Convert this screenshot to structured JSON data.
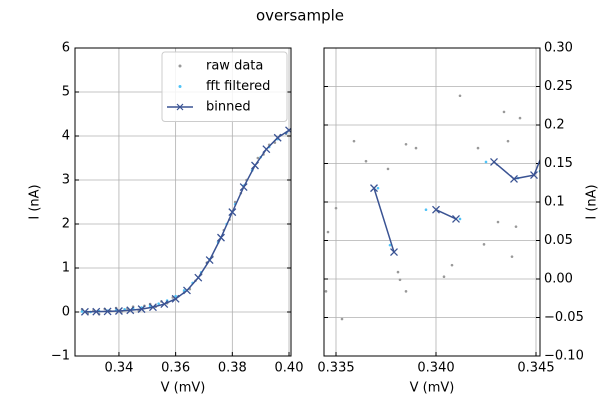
{
  "title": "oversample",
  "chart_data": [
    {
      "type": "line",
      "xlabel": "V (mV)",
      "ylabel": "I (nA)",
      "xlim": [
        0.3245,
        0.4007
      ],
      "ylim": [
        -1,
        6
      ],
      "xticks": [
        0.34,
        0.36,
        0.38,
        {
          "value": 0.4,
          "label": "0.40"
        }
      ],
      "yticks": [
        {
          "value": -1,
          "label": "−1"
        },
        0,
        1,
        2,
        3,
        4,
        5,
        6
      ],
      "grid": true,
      "legend": "upper right",
      "y_axis_side": "left",
      "series": [
        {
          "name": "raw data",
          "color": "#999999",
          "style": "dots",
          "x": [
            0.327,
            0.329,
            0.331,
            0.333,
            0.335,
            0.337,
            0.339,
            0.341,
            0.343,
            0.345,
            0.347,
            0.349,
            0.351,
            0.353,
            0.355,
            0.357,
            0.359,
            0.361,
            0.363,
            0.365,
            0.367,
            0.369,
            0.371,
            0.373,
            0.375,
            0.377,
            0.379,
            0.381,
            0.383,
            0.385,
            0.387,
            0.389,
            0.391,
            0.393,
            0.395,
            0.397,
            0.399
          ],
          "values": [
            0.06,
            -0.03,
            0.04,
            -0.05,
            0.07,
            0.02,
            0.09,
            0.01,
            0.08,
            0.12,
            0.03,
            0.14,
            0.18,
            0.12,
            0.24,
            0.2,
            0.33,
            0.36,
            0.47,
            0.52,
            0.71,
            0.86,
            1.12,
            1.26,
            1.6,
            1.86,
            2.1,
            2.5,
            2.7,
            3.0,
            3.22,
            3.5,
            3.58,
            3.8,
            3.85,
            4.02,
            4.05
          ]
        },
        {
          "name": "fft filtered",
          "color": "#4fc3f7",
          "style": "dots",
          "x": [
            0.327,
            0.33,
            0.333,
            0.336,
            0.339,
            0.342,
            0.345,
            0.348,
            0.351,
            0.354,
            0.357,
            0.36,
            0.363,
            0.366,
            0.369,
            0.372,
            0.375,
            0.378,
            0.381,
            0.384,
            0.387,
            0.39,
            0.393,
            0.396,
            0.399
          ],
          "values": [
            0.01,
            0.0,
            0.02,
            0.03,
            0.04,
            0.06,
            0.08,
            0.1,
            0.14,
            0.19,
            0.26,
            0.36,
            0.49,
            0.66,
            0.9,
            1.2,
            1.58,
            2.0,
            2.45,
            2.87,
            3.22,
            3.52,
            3.75,
            3.93,
            4.07
          ]
        },
        {
          "name": "binned",
          "color": "#3a5393",
          "style": "line-x",
          "x": [
            0.328,
            0.332,
            0.336,
            0.34,
            0.344,
            0.348,
            0.352,
            0.356,
            0.36,
            0.364,
            0.368,
            0.372,
            0.376,
            0.38,
            0.384,
            0.388,
            0.392,
            0.396,
            0.4
          ],
          "values": [
            0.005,
            0.008,
            0.013,
            0.023,
            0.04,
            0.065,
            0.11,
            0.18,
            0.3,
            0.49,
            0.78,
            1.18,
            1.69,
            2.27,
            2.84,
            3.33,
            3.7,
            3.96,
            4.13
          ]
        }
      ]
    },
    {
      "type": "line",
      "xlabel": "V (mV)",
      "ylabel": "I (nA)",
      "xlim": [
        0.3344,
        0.3452
      ],
      "ylim": [
        -0.1,
        0.3
      ],
      "xticks": [
        0.335,
        {
          "value": 0.34,
          "label": "0.340"
        },
        0.345
      ],
      "yticks": [
        {
          "value": -0.1,
          "label": "−0.10"
        },
        {
          "value": -0.05,
          "label": "−0.05"
        },
        {
          "value": 0,
          "label": "0.00"
        },
        0.05,
        0.1,
        0.15,
        0.2,
        0.25,
        {
          "value": 0.3,
          "label": "0.30"
        }
      ],
      "grid": true,
      "y_axis_side": "right",
      "series": [
        {
          "color": "#999999",
          "style": "dots",
          "x": [
            0.3345,
            0.3346,
            0.335,
            0.3353,
            0.3359,
            0.3365,
            0.3376,
            0.3381,
            0.3382,
            0.3385,
            0.3385,
            0.339,
            0.3404,
            0.3408,
            0.3412,
            0.3421,
            0.3424,
            0.3431,
            0.3434,
            0.3436,
            0.3438,
            0.344,
            0.3442
          ],
          "values": [
            -0.016,
            0.061,
            0.092,
            -0.052,
            0.179,
            0.153,
            0.143,
            0.009,
            -0.001,
            -0.016,
            0.175,
            0.17,
            0.003,
            0.018,
            0.238,
            0.17,
            0.045,
            0.074,
            0.217,
            0.179,
            0.029,
            0.068,
            0.209
          ]
        },
        {
          "color": "#4fc3f7",
          "style": "dots",
          "x": [
            0.3371,
            0.3377,
            0.3395,
            0.3412,
            0.3425,
            0.3441,
            0.3452
          ],
          "values": [
            0.118,
            0.044,
            0.09,
            0.078,
            0.152,
            0.131,
            0.14
          ]
        },
        {
          "color": "#3a5393",
          "style": "line-x",
          "x": [
            0.3369,
            0.3379,
            null,
            0.34,
            0.341,
            null,
            0.3429,
            0.3439,
            0.3449,
            0.3456
          ],
          "values": [
            0.118,
            0.035,
            null,
            0.09,
            0.078,
            null,
            0.152,
            0.13,
            0.135,
            0.18
          ]
        }
      ]
    }
  ]
}
